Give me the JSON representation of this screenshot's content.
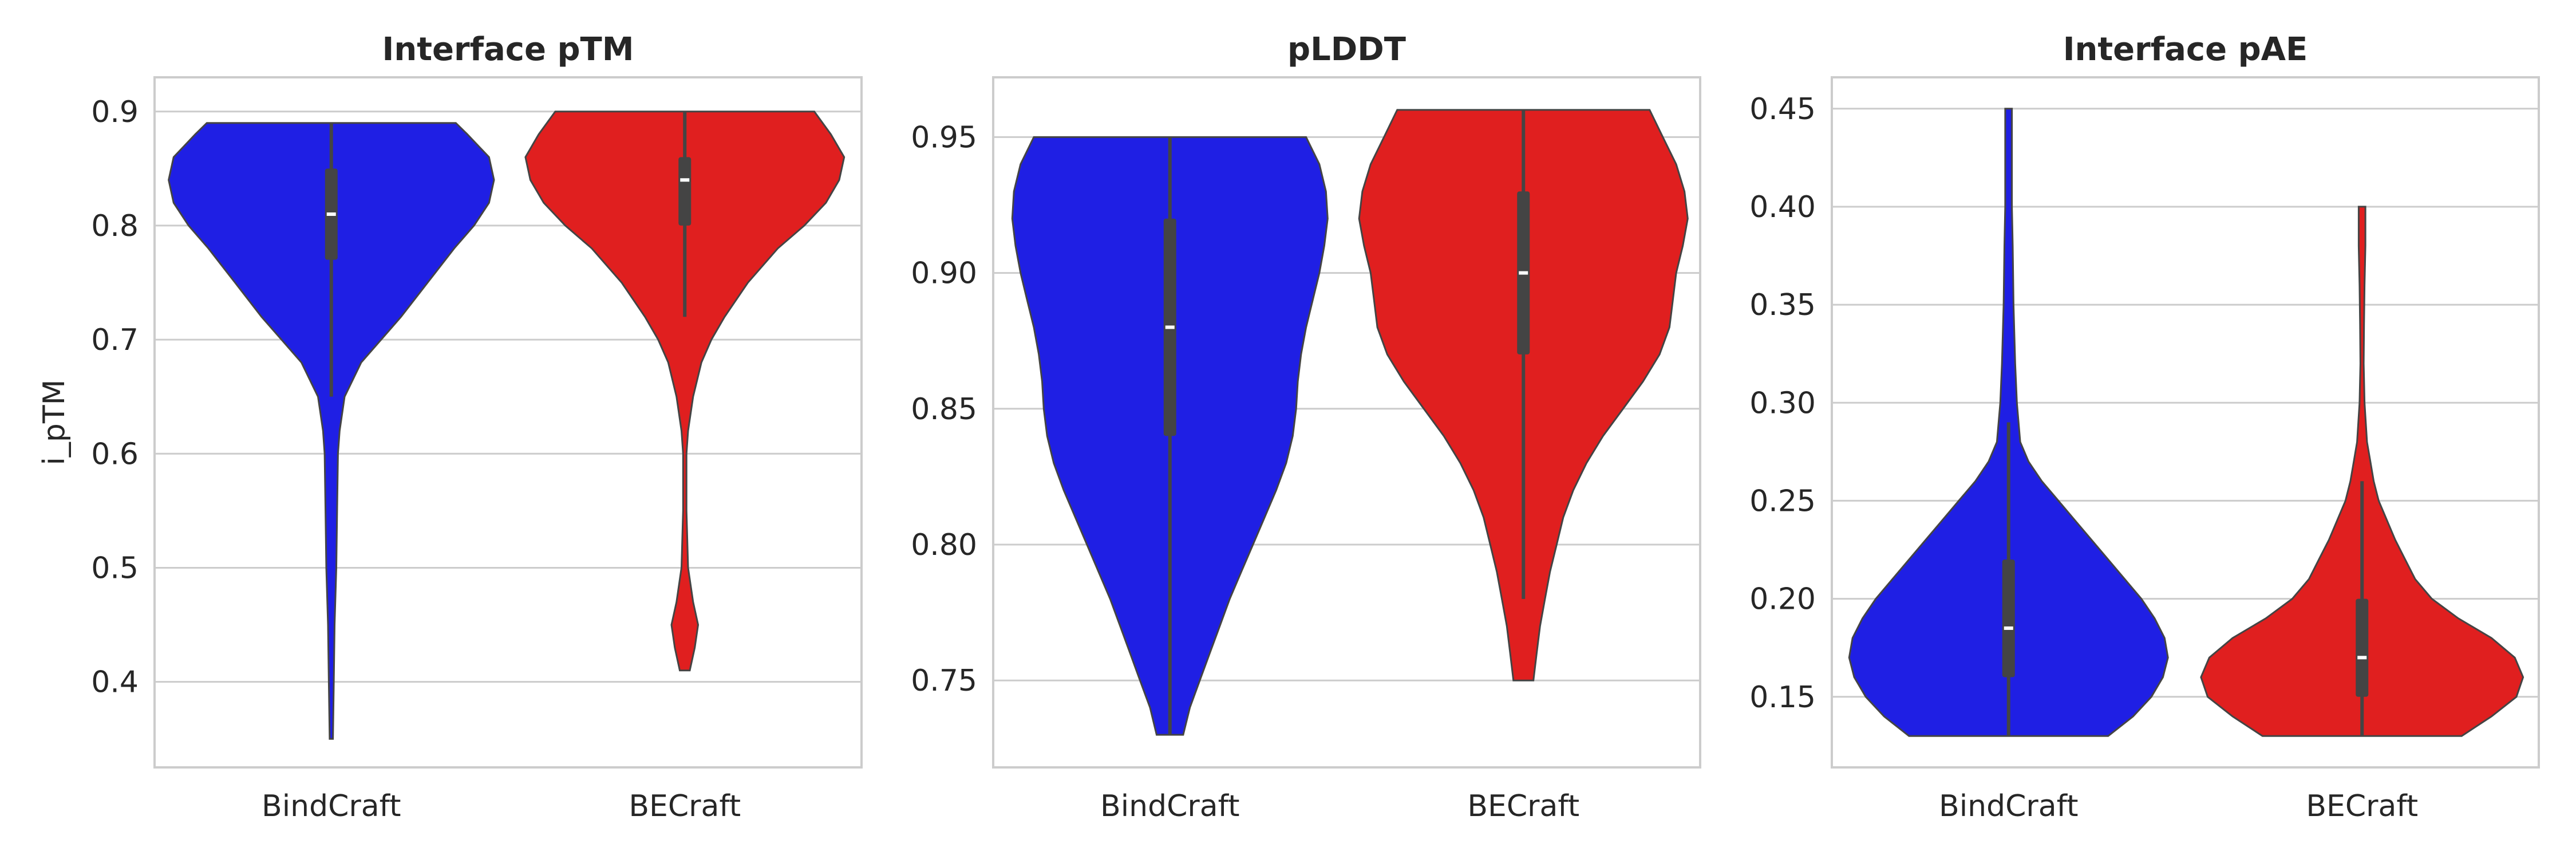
{
  "chart_data": [
    {
      "type": "violin",
      "title": "Interface pTM",
      "ylabel": "i_pTM",
      "ylim": [
        0.325,
        0.93
      ],
      "yticks": [
        0.4,
        0.5,
        0.6,
        0.7,
        0.8,
        0.9
      ],
      "ytick_labels": [
        "0.4",
        "0.5",
        "0.6",
        "0.7",
        "0.8",
        "0.9"
      ],
      "categories": [
        "BindCraft",
        "BECraft"
      ],
      "grid": true,
      "series": [
        {
          "category": "BindCraft",
          "color": "#1f1fe4",
          "min": 0.35,
          "max": 0.89,
          "q1": 0.77,
          "median": 0.81,
          "q3": 0.85,
          "whisker_low": 0.65,
          "whisker_high": 0.89,
          "density": [
            [
              0.35,
              0.01
            ],
            [
              0.4,
              0.015
            ],
            [
              0.45,
              0.02
            ],
            [
              0.5,
              0.03
            ],
            [
              0.55,
              0.035
            ],
            [
              0.6,
              0.04
            ],
            [
              0.62,
              0.05
            ],
            [
              0.65,
              0.08
            ],
            [
              0.68,
              0.18
            ],
            [
              0.7,
              0.3
            ],
            [
              0.72,
              0.42
            ],
            [
              0.75,
              0.58
            ],
            [
              0.78,
              0.74
            ],
            [
              0.8,
              0.86
            ],
            [
              0.82,
              0.95
            ],
            [
              0.84,
              0.98
            ],
            [
              0.86,
              0.95
            ],
            [
              0.88,
              0.82
            ],
            [
              0.89,
              0.75
            ]
          ]
        },
        {
          "category": "BECraft",
          "color": "#e01f1f",
          "min": 0.41,
          "max": 0.9,
          "q1": 0.8,
          "median": 0.84,
          "q3": 0.86,
          "whisker_low": 0.72,
          "whisker_high": 0.9,
          "density": [
            [
              0.41,
              0.03
            ],
            [
              0.43,
              0.06
            ],
            [
              0.45,
              0.08
            ],
            [
              0.47,
              0.05
            ],
            [
              0.5,
              0.02
            ],
            [
              0.55,
              0.01
            ],
            [
              0.6,
              0.01
            ],
            [
              0.62,
              0.02
            ],
            [
              0.65,
              0.05
            ],
            [
              0.68,
              0.1
            ],
            [
              0.7,
              0.16
            ],
            [
              0.72,
              0.24
            ],
            [
              0.75,
              0.38
            ],
            [
              0.78,
              0.56
            ],
            [
              0.8,
              0.72
            ],
            [
              0.82,
              0.85
            ],
            [
              0.84,
              0.93
            ],
            [
              0.86,
              0.96
            ],
            [
              0.88,
              0.88
            ],
            [
              0.9,
              0.78
            ]
          ]
        }
      ]
    },
    {
      "type": "violin",
      "title": "pLDDT",
      "ylabel": "",
      "ylim": [
        0.718,
        0.972
      ],
      "yticks": [
        0.75,
        0.8,
        0.85,
        0.9,
        0.95
      ],
      "ytick_labels": [
        "0.75",
        "0.80",
        "0.85",
        "0.90",
        "0.95"
      ],
      "categories": [
        "BindCraft",
        "BECraft"
      ],
      "grid": true,
      "series": [
        {
          "category": "BindCraft",
          "color": "#1f1fe4",
          "min": 0.73,
          "max": 0.95,
          "q1": 0.84,
          "median": 0.88,
          "q3": 0.92,
          "whisker_low": 0.73,
          "whisker_high": 0.95,
          "density": [
            [
              0.73,
              0.08
            ],
            [
              0.74,
              0.12
            ],
            [
              0.75,
              0.18
            ],
            [
              0.76,
              0.24
            ],
            [
              0.77,
              0.3
            ],
            [
              0.78,
              0.36
            ],
            [
              0.79,
              0.43
            ],
            [
              0.8,
              0.5
            ],
            [
              0.81,
              0.57
            ],
            [
              0.82,
              0.64
            ],
            [
              0.83,
              0.7
            ],
            [
              0.84,
              0.74
            ],
            [
              0.85,
              0.76
            ],
            [
              0.86,
              0.77
            ],
            [
              0.87,
              0.79
            ],
            [
              0.88,
              0.82
            ],
            [
              0.89,
              0.86
            ],
            [
              0.9,
              0.9
            ],
            [
              0.91,
              0.93
            ],
            [
              0.92,
              0.95
            ],
            [
              0.93,
              0.94
            ],
            [
              0.94,
              0.9
            ],
            [
              0.95,
              0.82
            ]
          ]
        },
        {
          "category": "BECraft",
          "color": "#e01f1f",
          "min": 0.75,
          "max": 0.96,
          "q1": 0.87,
          "median": 0.9,
          "q3": 0.93,
          "whisker_low": 0.78,
          "whisker_high": 0.96,
          "density": [
            [
              0.75,
              0.06
            ],
            [
              0.76,
              0.08
            ],
            [
              0.77,
              0.1
            ],
            [
              0.78,
              0.13
            ],
            [
              0.79,
              0.16
            ],
            [
              0.8,
              0.2
            ],
            [
              0.81,
              0.24
            ],
            [
              0.82,
              0.3
            ],
            [
              0.83,
              0.38
            ],
            [
              0.84,
              0.48
            ],
            [
              0.85,
              0.6
            ],
            [
              0.86,
              0.72
            ],
            [
              0.87,
              0.82
            ],
            [
              0.88,
              0.88
            ],
            [
              0.89,
              0.9
            ],
            [
              0.9,
              0.92
            ],
            [
              0.91,
              0.96
            ],
            [
              0.92,
              0.99
            ],
            [
              0.93,
              0.97
            ],
            [
              0.94,
              0.92
            ],
            [
              0.95,
              0.84
            ],
            [
              0.96,
              0.76
            ]
          ]
        }
      ]
    },
    {
      "type": "violin",
      "title": "Interface pAE",
      "ylabel": "",
      "ylim": [
        0.114,
        0.466
      ],
      "yticks": [
        0.15,
        0.2,
        0.25,
        0.3,
        0.35,
        0.4,
        0.45
      ],
      "ytick_labels": [
        "0.15",
        "0.20",
        "0.25",
        "0.30",
        "0.35",
        "0.40",
        "0.45"
      ],
      "categories": [
        "BindCraft",
        "BECraft"
      ],
      "grid": true,
      "series": [
        {
          "category": "BindCraft",
          "color": "#1f1fe4",
          "min": 0.13,
          "max": 0.45,
          "q1": 0.16,
          "median": 0.185,
          "q3": 0.22,
          "whisker_low": 0.13,
          "whisker_high": 0.29,
          "density": [
            [
              0.13,
              0.6
            ],
            [
              0.14,
              0.75
            ],
            [
              0.15,
              0.86
            ],
            [
              0.16,
              0.93
            ],
            [
              0.17,
              0.96
            ],
            [
              0.18,
              0.94
            ],
            [
              0.19,
              0.88
            ],
            [
              0.2,
              0.8
            ],
            [
              0.21,
              0.7
            ],
            [
              0.22,
              0.6
            ],
            [
              0.23,
              0.5
            ],
            [
              0.24,
              0.4
            ],
            [
              0.25,
              0.3
            ],
            [
              0.26,
              0.2
            ],
            [
              0.27,
              0.12
            ],
            [
              0.28,
              0.07
            ],
            [
              0.3,
              0.05
            ],
            [
              0.32,
              0.04
            ],
            [
              0.35,
              0.03
            ],
            [
              0.38,
              0.025
            ],
            [
              0.4,
              0.02
            ],
            [
              0.42,
              0.02
            ],
            [
              0.45,
              0.02
            ]
          ]
        },
        {
          "category": "BECraft",
          "color": "#e01f1f",
          "min": 0.13,
          "max": 0.4,
          "q1": 0.15,
          "median": 0.17,
          "q3": 0.2,
          "whisker_low": 0.13,
          "whisker_high": 0.26,
          "density": [
            [
              0.13,
              0.6
            ],
            [
              0.14,
              0.78
            ],
            [
              0.15,
              0.93
            ],
            [
              0.16,
              0.97
            ],
            [
              0.17,
              0.92
            ],
            [
              0.18,
              0.78
            ],
            [
              0.19,
              0.58
            ],
            [
              0.2,
              0.42
            ],
            [
              0.21,
              0.32
            ],
            [
              0.22,
              0.26
            ],
            [
              0.23,
              0.2
            ],
            [
              0.24,
              0.15
            ],
            [
              0.25,
              0.1
            ],
            [
              0.26,
              0.07
            ],
            [
              0.27,
              0.05
            ],
            [
              0.28,
              0.03
            ],
            [
              0.3,
              0.015
            ],
            [
              0.32,
              0.01
            ],
            [
              0.34,
              0.012
            ],
            [
              0.36,
              0.015
            ],
            [
              0.38,
              0.02
            ],
            [
              0.4,
              0.02
            ]
          ]
        }
      ]
    }
  ]
}
